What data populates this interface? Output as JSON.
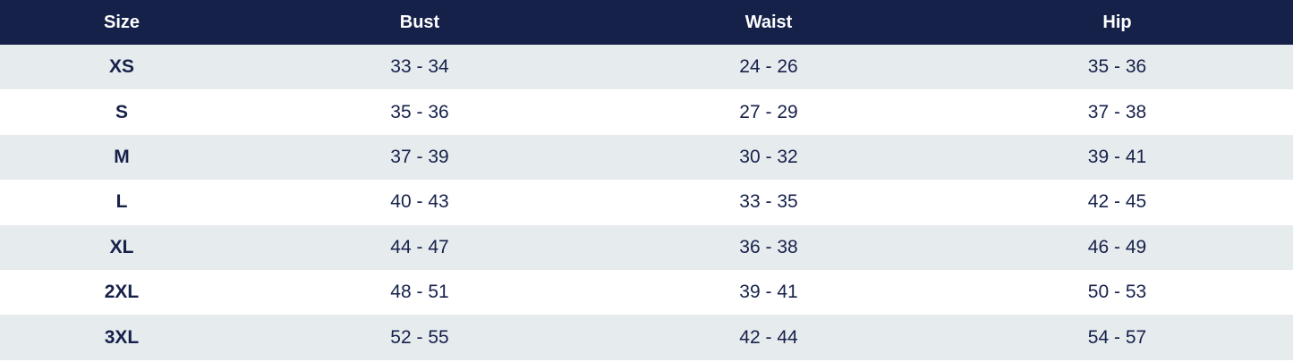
{
  "table": {
    "headers": {
      "size": "Size",
      "bust": "Bust",
      "waist": "Waist",
      "hip": "Hip"
    },
    "rows": [
      {
        "size": "XS",
        "bust": "33 - 34",
        "waist": "24 - 26",
        "hip": "35 - 36"
      },
      {
        "size": "S",
        "bust": "35 - 36",
        "waist": "27 - 29",
        "hip": "37 - 38"
      },
      {
        "size": "M",
        "bust": "37 - 39",
        "waist": "30 - 32",
        "hip": "39 - 41"
      },
      {
        "size": "L",
        "bust": "40 - 43",
        "waist": "33 - 35",
        "hip": "42 - 45"
      },
      {
        "size": "XL",
        "bust": "44 - 47",
        "waist": "36 - 38",
        "hip": "46 - 49"
      },
      {
        "size": "2XL",
        "bust": "48 - 51",
        "waist": "39 - 41",
        "hip": "50 - 53"
      },
      {
        "size": "3XL",
        "bust": "52 - 55",
        "waist": "42 - 44",
        "hip": "54 - 57"
      }
    ]
  },
  "colors": {
    "header_background": "#16214a",
    "header_text": "#ffffff",
    "row_shaded": "#e6ebee",
    "row_plain": "#ffffff",
    "body_text": "#16214a"
  }
}
